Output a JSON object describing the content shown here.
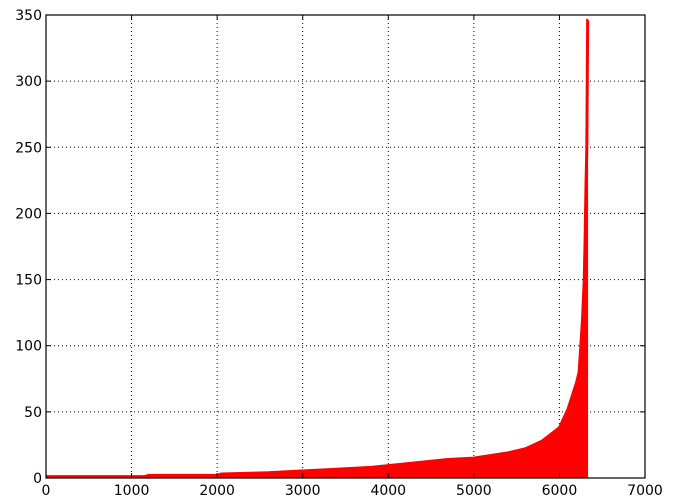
{
  "chart_data": {
    "type": "area",
    "title": "",
    "xlabel": "",
    "ylabel": "",
    "xlim": [
      0,
      7000
    ],
    "ylim": [
      0,
      350
    ],
    "grid": true,
    "x_ticks": [
      0,
      1000,
      2000,
      3000,
      4000,
      5000,
      6000,
      7000
    ],
    "x_tick_labels": [
      "0",
      "1000",
      "2000",
      "3000",
      "4000",
      "5000",
      "6000",
      "7000"
    ],
    "y_ticks": [
      0,
      50,
      100,
      150,
      200,
      250,
      300,
      350
    ],
    "y_tick_labels": [
      "0",
      "50",
      "100",
      "150",
      "200",
      "250",
      "300",
      "350"
    ],
    "series": [
      {
        "color": "#ff0000",
        "x": [
          0,
          1150,
          1200,
          2000,
          2050,
          2600,
          2900,
          3200,
          3500,
          3800,
          4100,
          4400,
          4700,
          5000,
          5200,
          5400,
          5600,
          5700,
          5800,
          5900,
          6000,
          6050,
          6100,
          6150,
          6180,
          6200,
          6230,
          6250,
          6270,
          6290,
          6300,
          6310,
          6320,
          6330,
          6335
        ],
        "y": [
          1,
          1,
          2,
          2,
          3,
          4,
          5,
          6,
          7,
          8,
          10,
          12,
          14,
          15,
          17,
          19,
          22,
          25,
          28,
          33,
          38,
          45,
          52,
          62,
          68,
          72,
          80,
          100,
          120,
          150,
          180,
          220,
          250,
          346,
          346
        ]
      }
    ]
  }
}
